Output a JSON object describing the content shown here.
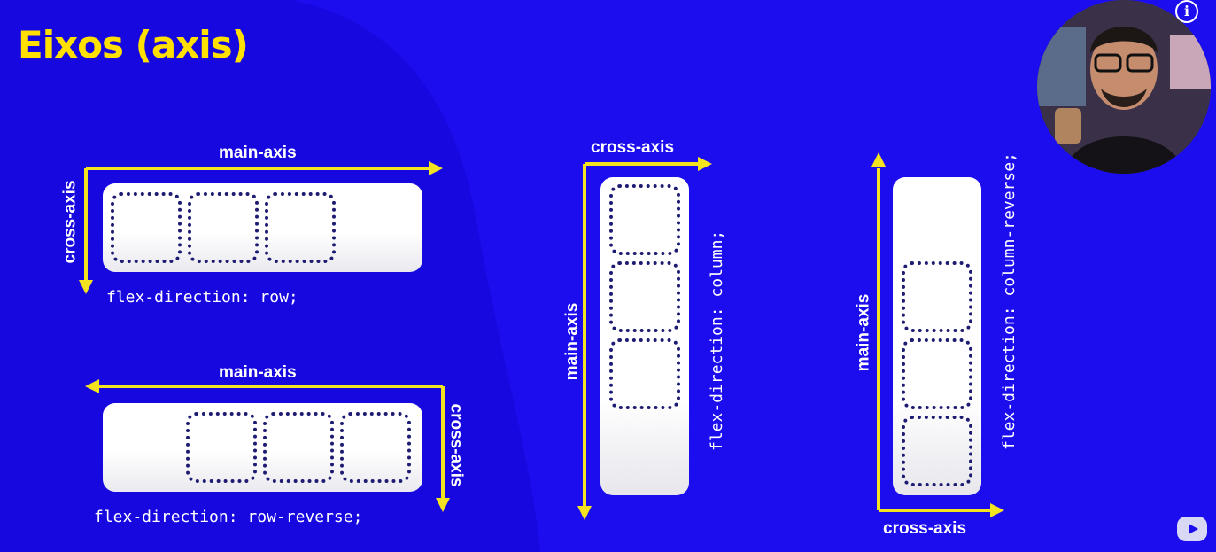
{
  "title": "Eixos (axis)",
  "colors": {
    "background": "#1c0dee",
    "accent": "#ffe000",
    "arrow": "#f4e31f",
    "item_border": "#1e1c72"
  },
  "row": {
    "main_axis": "main-axis",
    "cross_axis": "cross-axis",
    "code": "flex-direction: row;"
  },
  "row_reverse": {
    "main_axis": "main-axis",
    "cross_axis": "cross-axis",
    "code": "flex-direction: row-reverse;"
  },
  "column": {
    "main_axis": "main-axis",
    "cross_axis": "cross-axis",
    "code": "flex-direction: column;"
  },
  "column_reverse": {
    "main_axis": "main-axis",
    "cross_axis": "cross-axis",
    "code": "flex-direction: column-reverse;"
  },
  "icons": {
    "info": "info-icon",
    "brand": "video-brand-icon",
    "webcam": "presenter-webcam"
  },
  "info_glyph": "i"
}
